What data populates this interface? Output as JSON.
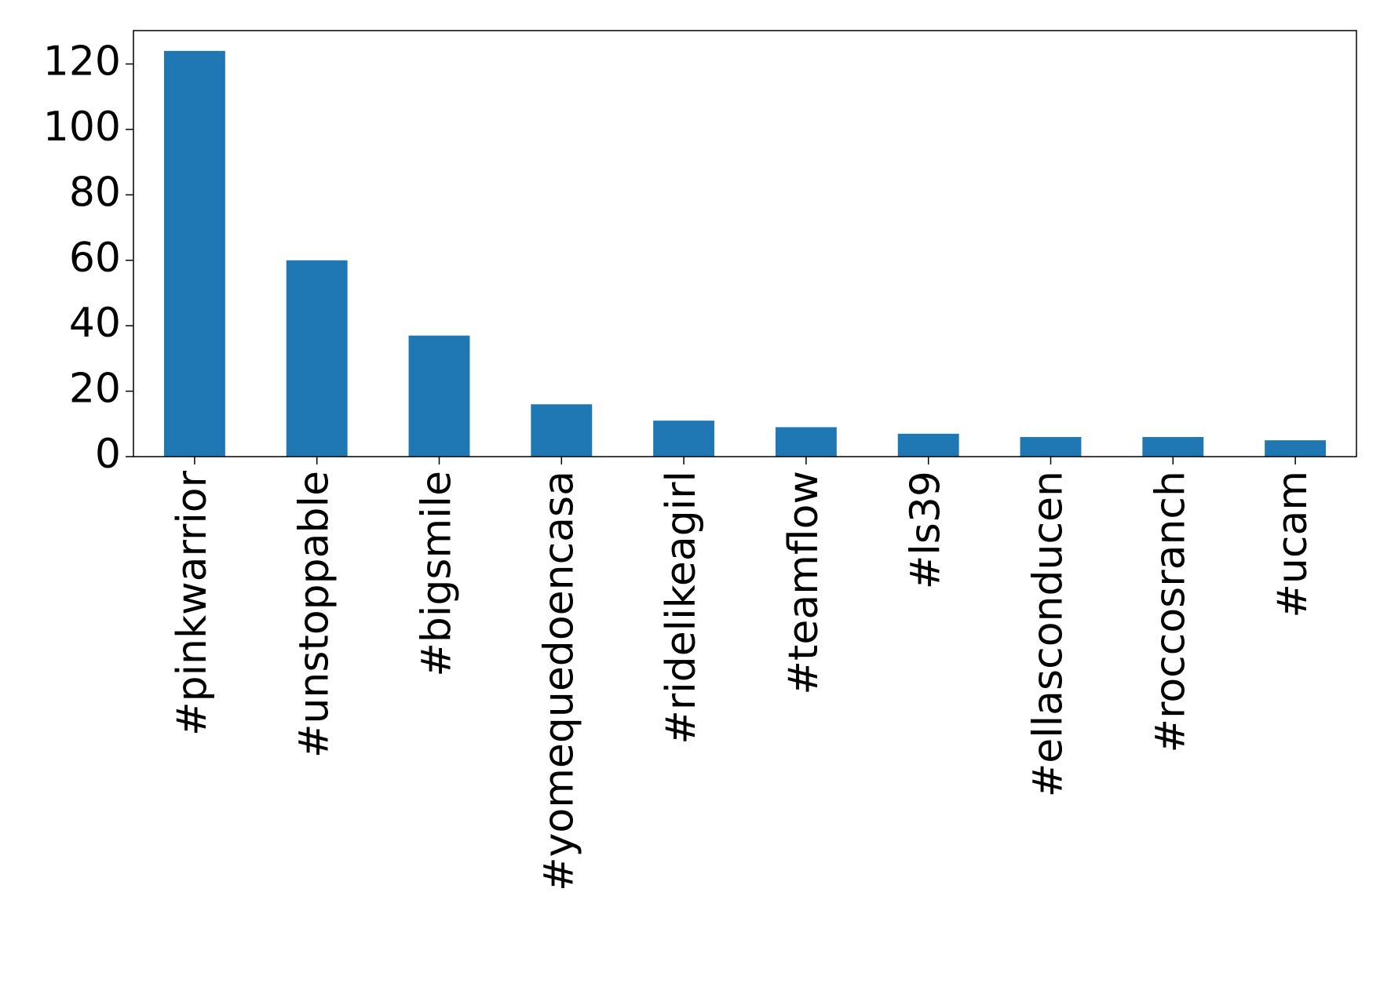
{
  "chart_data": {
    "type": "bar",
    "categories": [
      "#pinkwarrior",
      "#unstoppable",
      "#bigsmile",
      "#yomequedoencasa",
      "#ridelikeagirl",
      "#teamflow",
      "#ls39",
      "#ellasconducen",
      "#roccosranch",
      "#ucam"
    ],
    "values": [
      124,
      60,
      37,
      16,
      11,
      9,
      7,
      6,
      6,
      5
    ],
    "color": "#1f77b4",
    "ylim": [
      0,
      130.2
    ],
    "yticks": [
      0,
      20,
      40,
      60,
      80,
      100,
      120
    ],
    "grid": false
  }
}
